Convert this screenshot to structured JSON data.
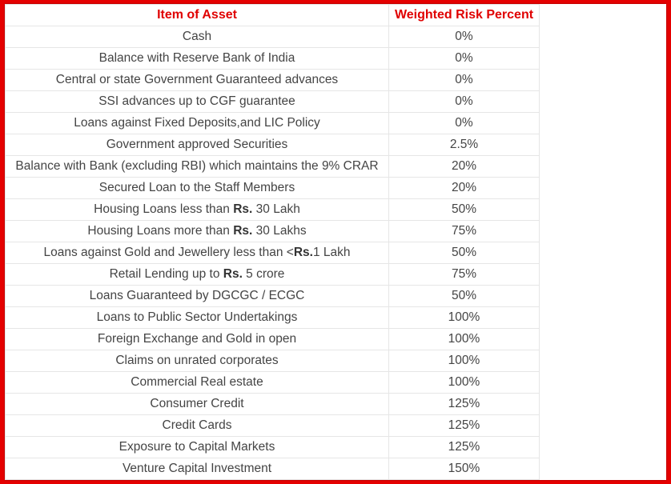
{
  "headers": [
    "Item of Asset",
    "Weighted Risk Percent"
  ],
  "rows": [
    {
      "pre": "Cash",
      "bold": "",
      "post": "",
      "value": "0%"
    },
    {
      "pre": "Balance with Reserve Bank of India",
      "bold": "",
      "post": "",
      "value": "0%"
    },
    {
      "pre": "Central or state Government Guaranteed advances",
      "bold": "",
      "post": "",
      "value": "0%"
    },
    {
      "pre": "SSI advances up to CGF guarantee",
      "bold": "",
      "post": "",
      "value": "0%"
    },
    {
      "pre": "Loans against Fixed Deposits,and LIC Policy",
      "bold": "",
      "post": "",
      "value": "0%"
    },
    {
      "pre": "Government approved Securities",
      "bold": "",
      "post": "",
      "value": "2.5%"
    },
    {
      "pre": "Balance with Bank (excluding RBI) which maintains the 9% CRAR",
      "bold": "",
      "post": "",
      "value": "20%"
    },
    {
      "pre": "Secured Loan to the Staff Members",
      "bold": "",
      "post": "",
      "value": "20%"
    },
    {
      "pre": "Housing Loans less than ",
      "bold": "Rs.",
      "post": " 30 Lakh",
      "value": "50%"
    },
    {
      "pre": "Housing Loans more than ",
      "bold": "Rs.",
      "post": " 30 Lakhs",
      "value": "75%"
    },
    {
      "pre": "Loans against Gold and Jewellery less than <",
      "bold": "Rs.",
      "post": "1 Lakh",
      "value": "50%"
    },
    {
      "pre": "Retail Lending up to ",
      "bold": "Rs.",
      "post": " 5 crore",
      "value": "75%"
    },
    {
      "pre": "Loans Guaranteed by DGCGC / ECGC",
      "bold": "",
      "post": "",
      "value": "50%"
    },
    {
      "pre": "Loans to Public Sector Undertakings",
      "bold": "",
      "post": "",
      "value": "100%"
    },
    {
      "pre": "Foreign Exchange and Gold in open",
      "bold": "",
      "post": "",
      "value": "100%"
    },
    {
      "pre": "Claims on unrated corporates",
      "bold": "",
      "post": "",
      "value": "100%"
    },
    {
      "pre": "Commercial Real estate",
      "bold": "",
      "post": "",
      "value": "100%"
    },
    {
      "pre": "Consumer Credit",
      "bold": "",
      "post": "",
      "value": "125%"
    },
    {
      "pre": "Credit Cards",
      "bold": "",
      "post": "",
      "value": "125%"
    },
    {
      "pre": "Exposure to Capital Markets",
      "bold": "",
      "post": "",
      "value": "125%"
    },
    {
      "pre": "Venture Capital Investment",
      "bold": "",
      "post": "",
      "value": "150%"
    }
  ]
}
